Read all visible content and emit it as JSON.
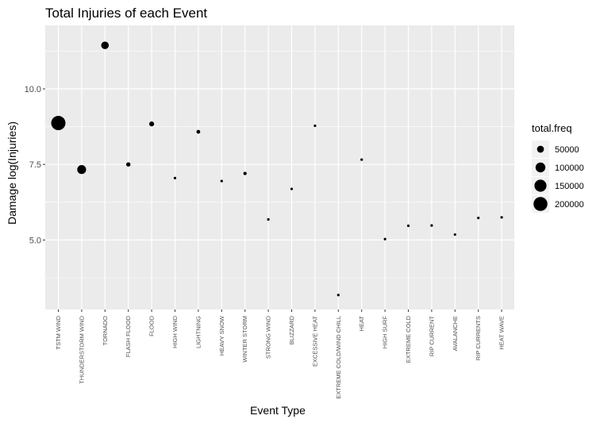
{
  "chart_data": {
    "type": "scatter",
    "title": "Total Injuries of each Event",
    "xlabel": "Event Type",
    "ylabel": "Damage log(Injuries)",
    "ylim": [
      2.7,
      12.1
    ],
    "yticks": [
      5.0,
      7.5,
      10.0
    ],
    "ytick_labels": [
      "5.0",
      "7.5",
      "10.0"
    ],
    "grid": true,
    "categories": [
      "TSTM WIND",
      "THUNDERSTORM WIND",
      "TORNADO",
      "FLASH FLOOD",
      "FLOOD",
      "HIGH WIND",
      "LIGHTNING",
      "HEAVY SNOW",
      "WINTER STORM",
      "STRONG WIND",
      "BLIZZARD",
      "EXCESSIVE HEAT",
      "EXTREME COLD/WIND CHILL",
      "HEAT",
      "HIGH SURF",
      "EXTREME COLD",
      "RIP CURRENT",
      "AVALANCHE",
      "RIP CURRENTS",
      "HEAT WAVE"
    ],
    "series": [
      {
        "values": [
          8.87,
          7.33,
          11.44,
          7.5,
          8.84,
          7.05,
          8.58,
          6.95,
          7.2,
          5.68,
          6.69,
          8.78,
          3.18,
          7.66,
          5.03,
          5.47,
          5.48,
          5.18,
          5.73,
          5.75
        ],
        "size": [
          211000,
          82000,
          60000,
          19000,
          25000,
          5700,
          15000,
          2400,
          11000,
          3500,
          2700,
          1700,
          1900,
          2600,
          1000,
          1700,
          1400,
          400,
          300,
          80
        ]
      }
    ],
    "legend": {
      "title": "total.freq",
      "position": "right",
      "entries": [
        {
          "label": "50000",
          "value": 50000
        },
        {
          "label": "100000",
          "value": 100000
        },
        {
          "label": "150000",
          "value": 150000
        },
        {
          "label": "200000",
          "value": 200000
        }
      ]
    },
    "colors": {
      "panel": "#ebebeb",
      "grid": "#ffffff",
      "point": "#000000"
    }
  }
}
